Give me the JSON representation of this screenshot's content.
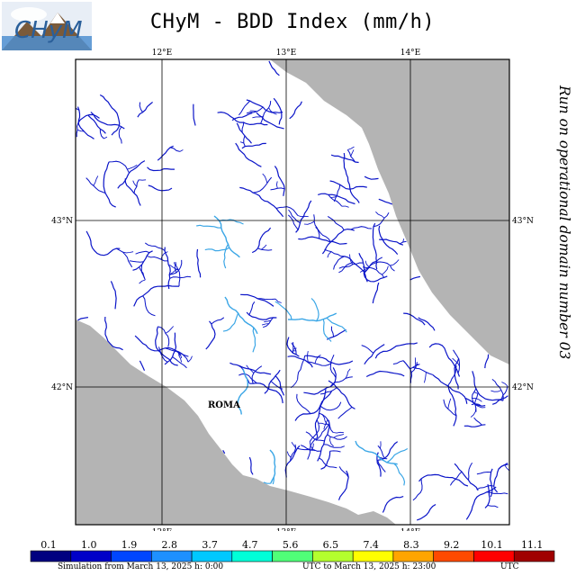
{
  "header": {
    "title": "CHyM - BDD Index (mm/h)",
    "logo_text": "CHyM"
  },
  "side_text": "Run on operational domain number 03",
  "map": {
    "lon_ticks": [
      "12°E",
      "13°E",
      "14°E"
    ],
    "lat_ticks": [
      "43°N",
      "42°N"
    ],
    "city_label": "ROMA",
    "colors": {
      "sea": "#b4b4b4",
      "land": "#ffffff",
      "river_main": "#0a14c8",
      "river_light": "#3aa6e6"
    }
  },
  "colorbar": {
    "labels": [
      "0.1",
      "1.0",
      "1.9",
      "2.8",
      "3.7",
      "4.7",
      "5.6",
      "6.5",
      "7.4",
      "8.3",
      "9.2",
      "10.1",
      "11.1"
    ],
    "colors": [
      "#000080",
      "#0000c8",
      "#0046ff",
      "#1e90ff",
      "#00c8ff",
      "#00ffd8",
      "#50ff78",
      "#b4ff2e",
      "#ffff00",
      "#ffa500",
      "#ff4a00",
      "#ff0000",
      "#a00000"
    ]
  },
  "footer": {
    "sim_from": "Simulation from March 13, 2025 h: 0:00",
    "sim_mid": "UTC to March 13, 2025 h: 23:00",
    "sim_utc": "UTC"
  }
}
